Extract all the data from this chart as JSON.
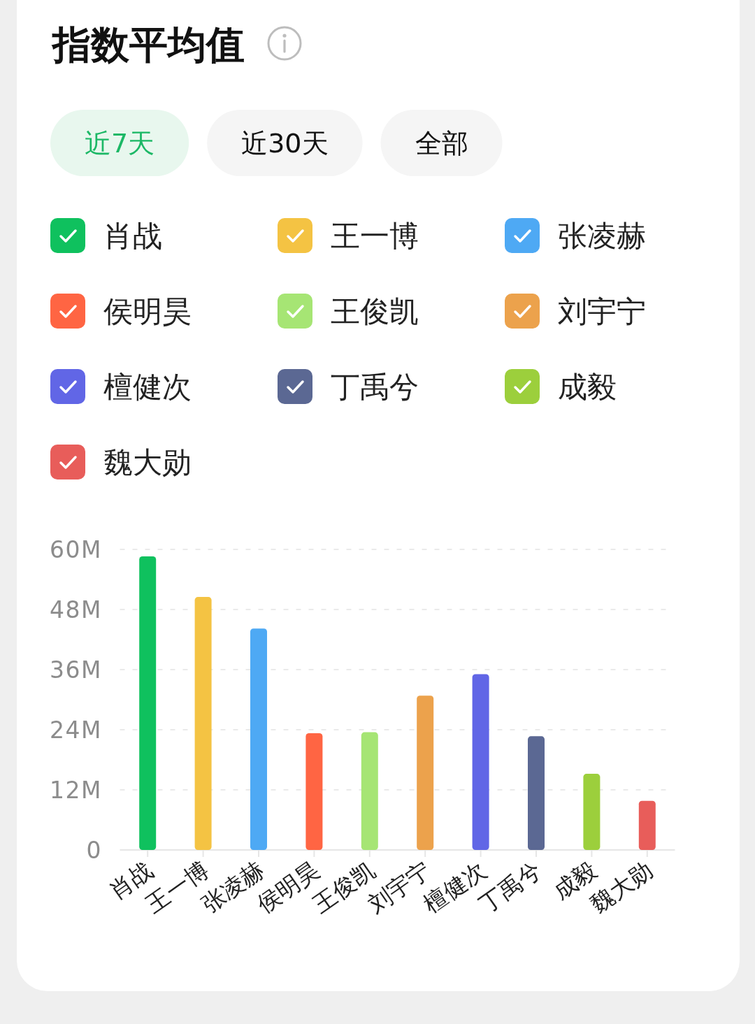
{
  "chart_data": {
    "type": "bar",
    "title": "指数平均值",
    "annotations": [
      "近7天",
      "近30天",
      "全部"
    ],
    "categories": [
      "肖战",
      "王一博",
      "张凌赫",
      "侯明昊",
      "王俊凯",
      "刘宇宁",
      "檀健次",
      "丁禹兮",
      "成毅",
      "魏大勋"
    ],
    "stacked": true,
    "series": [
      {
        "name": "肖战",
        "color": "#0fc15e",
        "values": [
          58.6,
          null,
          null,
          null,
          null,
          null,
          null,
          null,
          null,
          null
        ]
      },
      {
        "name": "王一博",
        "color": "#f4c343",
        "values": [
          null,
          50.5,
          null,
          null,
          null,
          null,
          null,
          null,
          null,
          null
        ]
      },
      {
        "name": "张凌赫",
        "color": "#4ea9f4",
        "values": [
          null,
          null,
          44.2,
          null,
          null,
          null,
          null,
          null,
          null,
          null
        ]
      },
      {
        "name": "侯明昊",
        "color": "#ff6543",
        "values": [
          null,
          null,
          null,
          23.3,
          null,
          null,
          null,
          null,
          null,
          null
        ]
      },
      {
        "name": "王俊凯",
        "color": "#a6e574",
        "values": [
          null,
          null,
          null,
          null,
          23.5,
          null,
          null,
          null,
          null,
          null
        ]
      },
      {
        "name": "刘宇宁",
        "color": "#eca24c",
        "values": [
          null,
          null,
          null,
          null,
          null,
          30.8,
          null,
          null,
          null,
          null
        ]
      },
      {
        "name": "檀健次",
        "color": "#6166e6",
        "values": [
          null,
          null,
          null,
          null,
          null,
          null,
          35.1,
          null,
          null,
          null
        ]
      },
      {
        "name": "丁禹兮",
        "color": "#5b6893",
        "values": [
          null,
          null,
          null,
          null,
          null,
          null,
          null,
          22.7,
          null,
          null
        ]
      },
      {
        "name": "成毅",
        "color": "#9ccf3c",
        "values": [
          null,
          null,
          null,
          null,
          null,
          null,
          null,
          null,
          15.2,
          null
        ]
      },
      {
        "name": "魏大勋",
        "color": "#e85d5a",
        "values": [
          null,
          null,
          null,
          null,
          null,
          null,
          null,
          null,
          null,
          9.8
        ]
      }
    ],
    "ylim": [
      0,
      60
    ],
    "yticks": [
      0,
      {
        "value": 12,
        "label": "12M"
      },
      {
        "value": 24,
        "label": "24M"
      },
      {
        "value": 36,
        "label": "36M"
      },
      {
        "value": 48,
        "label": "48M"
      },
      {
        "value": 60,
        "label": "60M"
      }
    ],
    "grid": "y",
    "legend": "top"
  }
}
